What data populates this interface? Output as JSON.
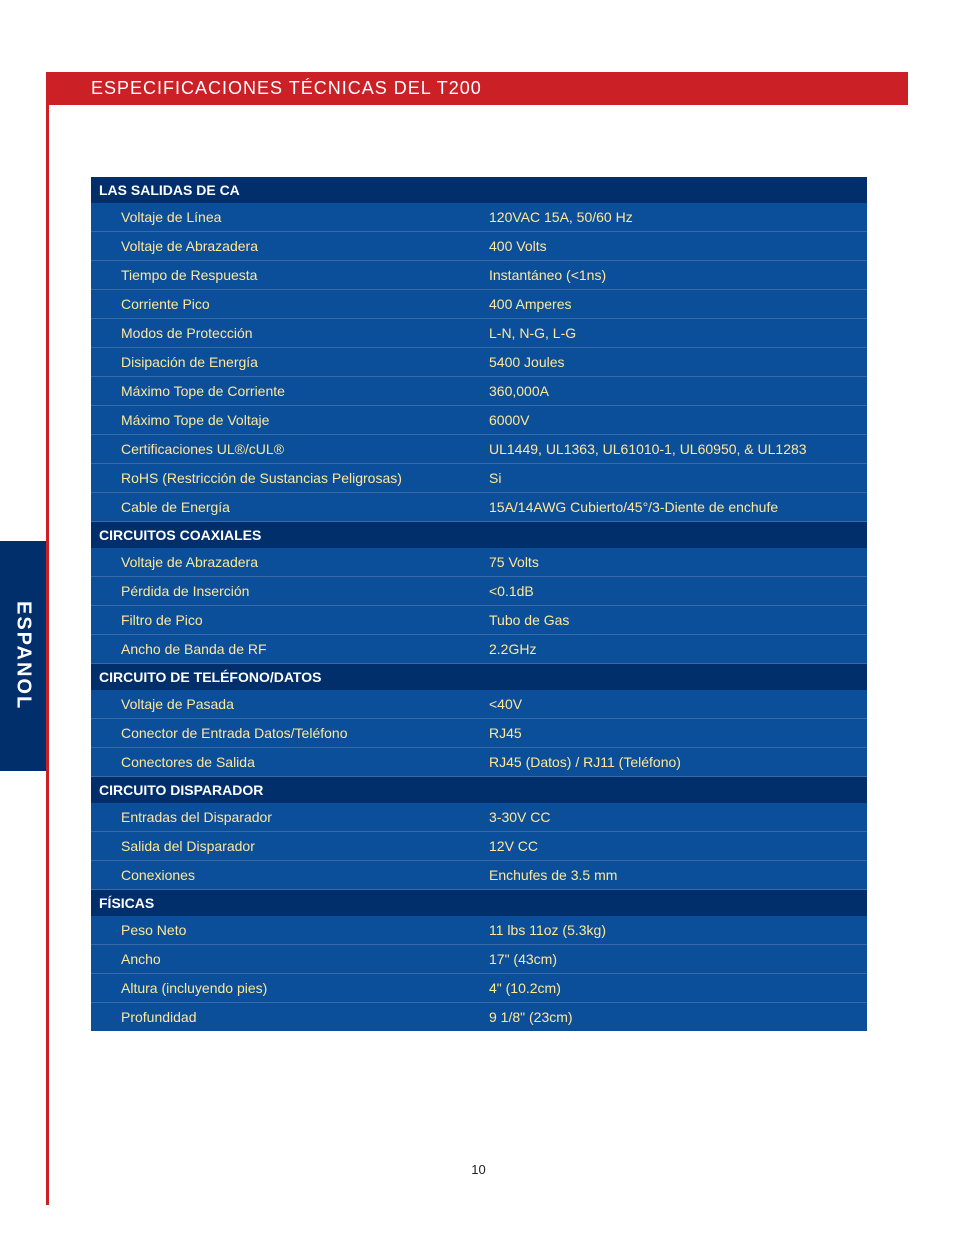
{
  "header": {
    "title": "ESPECIFICACIONES TÉCNICAS DEL T200"
  },
  "lang_tab": "ESPANOL",
  "page_number": "10",
  "sections": [
    {
      "title": "LAS SALIDAS DE CA",
      "rows": [
        {
          "label": "Voltaje de Línea",
          "value": "120VAC 15A, 50/60 Hz"
        },
        {
          "label": "Voltaje de Abrazadera",
          "value": "400 Volts"
        },
        {
          "label": "Tiempo de Respuesta",
          "value": "Instantáneo (<1ns)"
        },
        {
          "label": "Corriente Pico",
          "value": "400 Amperes"
        },
        {
          "label": "Modos de Protección",
          "value": "L-N, N-G, L-G"
        },
        {
          "label": "Disipación de Energía",
          "value": "5400 Joules"
        },
        {
          "label": "Máximo Tope de Corriente",
          "value": "360,000A"
        },
        {
          "label": "Máximo Tope de Voltaje",
          "value": "6000V"
        },
        {
          "label": "Certificaciones UL®/cUL®",
          "value": "UL1449, UL1363, UL61010-1, UL60950, & UL1283"
        },
        {
          "label": "RoHS (Restricción de Sustancias Peligrosas)",
          "value": "Si"
        },
        {
          "label": "Cable de Energía",
          "value": "15A/14AWG Cubierto/45°/3-Diente de enchufe"
        }
      ]
    },
    {
      "title": "CIRCUITOS COAXIALES",
      "rows": [
        {
          "label": "Voltaje de Abrazadera",
          "value": "75 Volts"
        },
        {
          "label": "Pérdida de Inserción",
          "value": "<0.1dB"
        },
        {
          "label": "Filtro de Pico",
          "value": "Tubo de Gas"
        },
        {
          "label": "Ancho de Banda de RF",
          "value": "2.2GHz"
        }
      ]
    },
    {
      "title": "CIRCUITO DE TELÉFONO/DATOS",
      "rows": [
        {
          "label": "Voltaje de Pasada",
          "value": "<40V"
        },
        {
          "label": "Conector de Entrada Datos/Teléfono",
          "value": "RJ45"
        },
        {
          "label": "Conectores de Salida",
          "value": "RJ45 (Datos)  / RJ11 (Teléfono)"
        }
      ]
    },
    {
      "title": "CIRCUITO DISPARADOR",
      "rows": [
        {
          "label": "Entradas del Disparador",
          "value": "3-30V CC"
        },
        {
          "label": "Salida del Disparador",
          "value": "12V CC"
        },
        {
          "label": "Conexiones",
          "value": "Enchufes de 3.5 mm"
        }
      ]
    },
    {
      "title": "FÍSICAS",
      "rows": [
        {
          "label": "Peso Neto",
          "value": "11 lbs 11oz (5.3kg)"
        },
        {
          "label": "Ancho",
          "value": "17\" (43cm)"
        },
        {
          "label": "Altura (incluyendo pies)",
          "value": "4\" (10.2cm)"
        },
        {
          "label": "Profundidad",
          "value": "9 1/8\" (23cm)"
        }
      ]
    }
  ]
}
